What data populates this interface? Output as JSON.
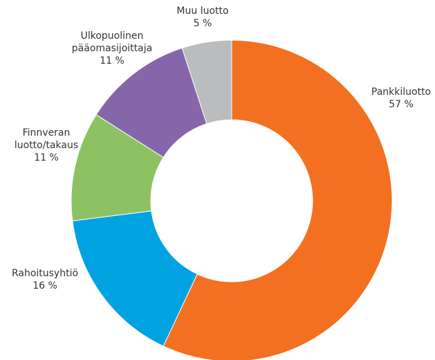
{
  "chart_data": {
    "type": "donut",
    "categories": [
      "Pankkiluotto",
      "Rahoitusyhtiö",
      "Finnveran\nluotto/takaus",
      "Ulkopuolinen\npääomasijoittaja",
      "Muu luotto"
    ],
    "values": [
      57,
      16,
      11,
      11,
      5
    ],
    "value_labels": [
      "57 %",
      "16 %",
      "11 %",
      "11 %",
      "5 %"
    ],
    "colors": [
      "#f37021",
      "#00a3e0",
      "#8dc263",
      "#8566ab",
      "#bbbcbe"
    ]
  }
}
